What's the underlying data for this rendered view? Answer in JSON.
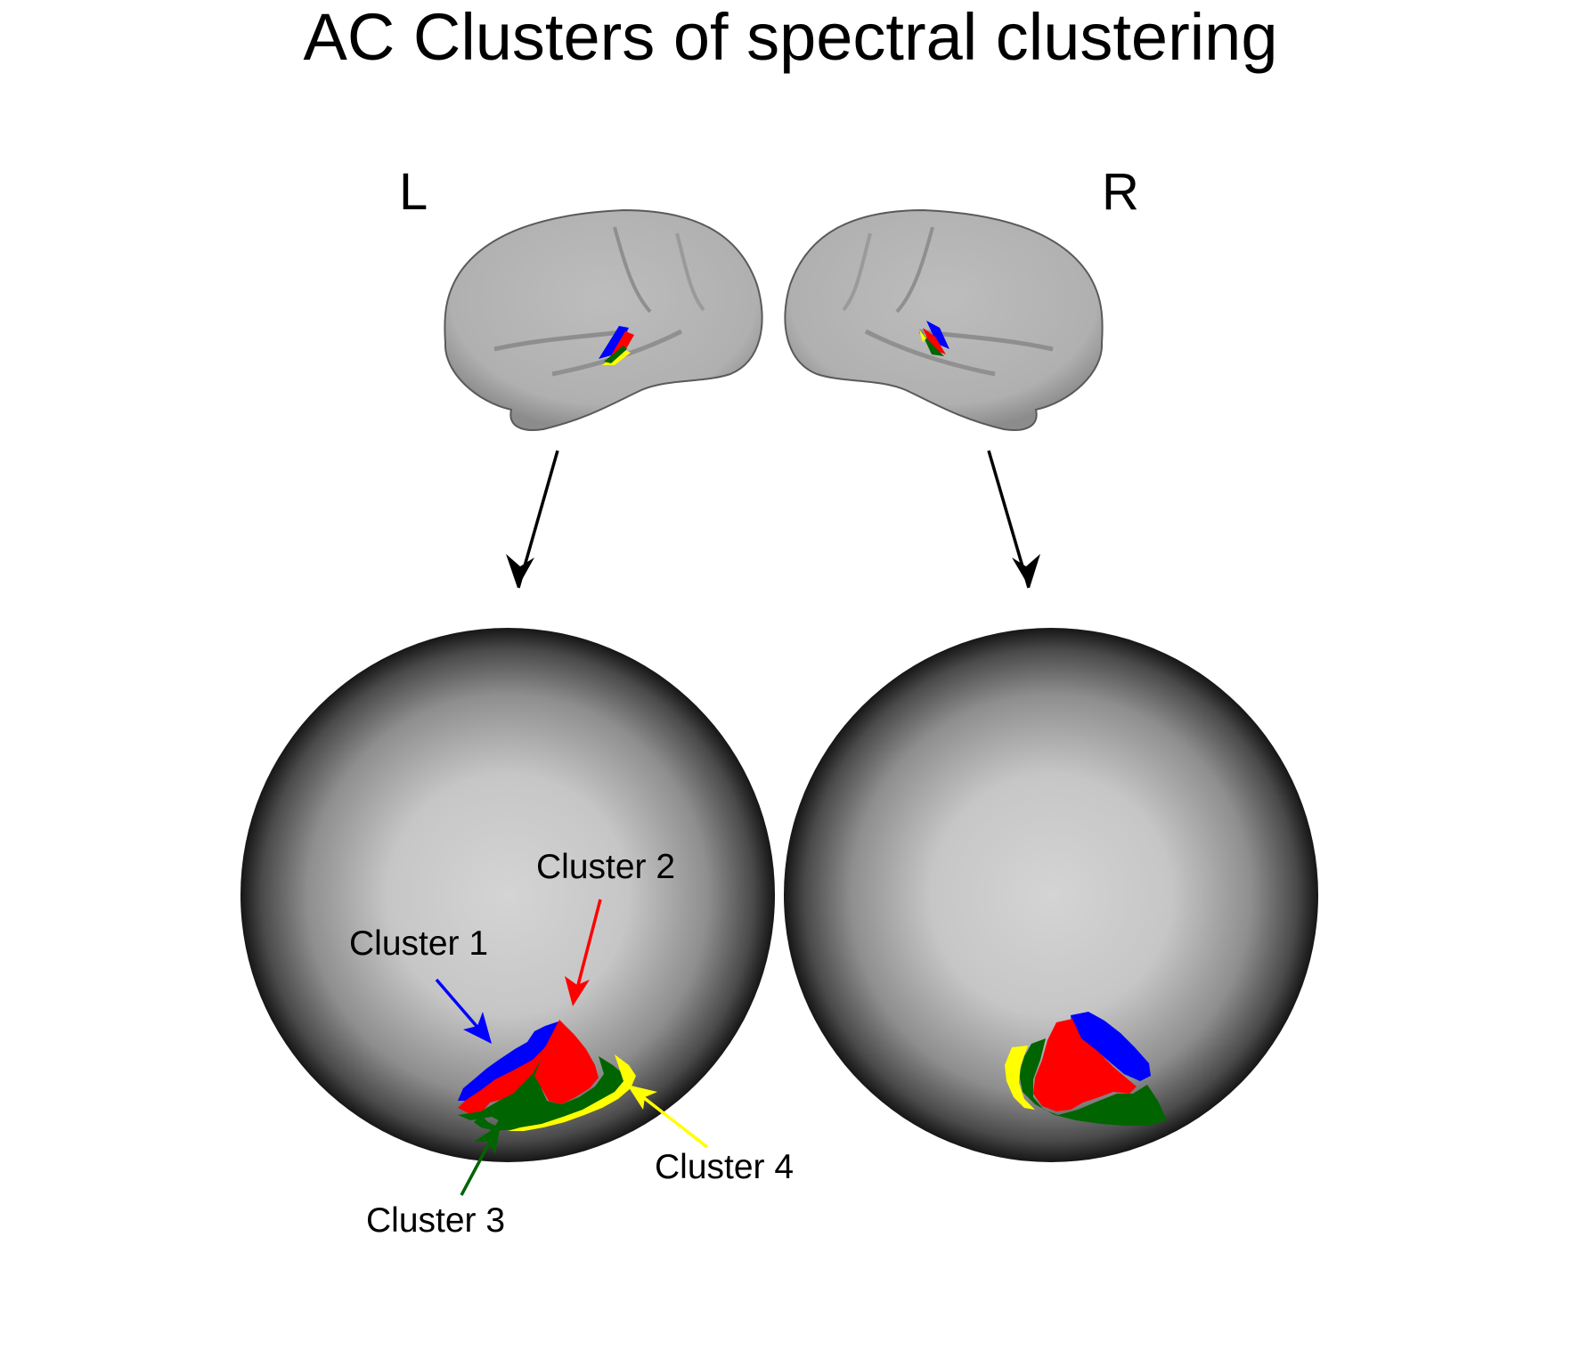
{
  "title": "AC Clusters of spectral clustering",
  "hemispheres": {
    "left": {
      "label": "L"
    },
    "right": {
      "label": "R"
    }
  },
  "clusters": [
    {
      "id": 1,
      "label": "Cluster 1",
      "color": "#0000ff"
    },
    {
      "id": 2,
      "label": "Cluster 2",
      "color": "#ff0000"
    },
    {
      "id": 3,
      "label": "Cluster 3",
      "color": "#006400"
    },
    {
      "id": 4,
      "label": "Cluster 4",
      "color": "#ffff00"
    }
  ],
  "colors": {
    "brain_surface": "#b4b4b4",
    "sphere_center": "#d4d4d4",
    "sphere_edge": "#1a1a1a",
    "arrow": "#000000"
  }
}
